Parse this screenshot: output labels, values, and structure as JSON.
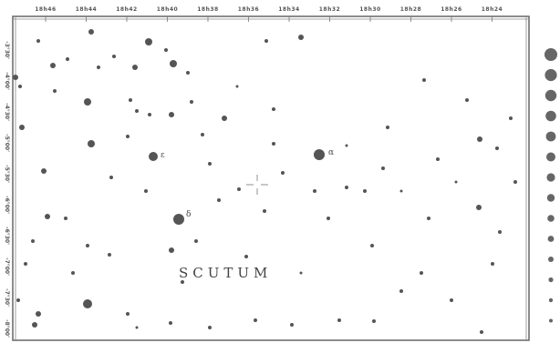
{
  "scale_top": [
    "18h46",
    "18h44",
    "18h42",
    "18h40",
    "18h38",
    "18h36",
    "18h34",
    "18h32",
    "18h30",
    "18h28",
    "18h26",
    "18h24"
  ],
  "scale_left": [
    "-3°30'",
    "-4°00'",
    "-4°30'",
    "-5°00'",
    "-5°30'",
    "-6°00'",
    "-6°30'",
    "-7°00'",
    "-7°30'",
    "-8°00'"
  ],
  "constellation": "SCUTUM",
  "star_labels": [
    "ε",
    "δ",
    "α"
  ]
}
